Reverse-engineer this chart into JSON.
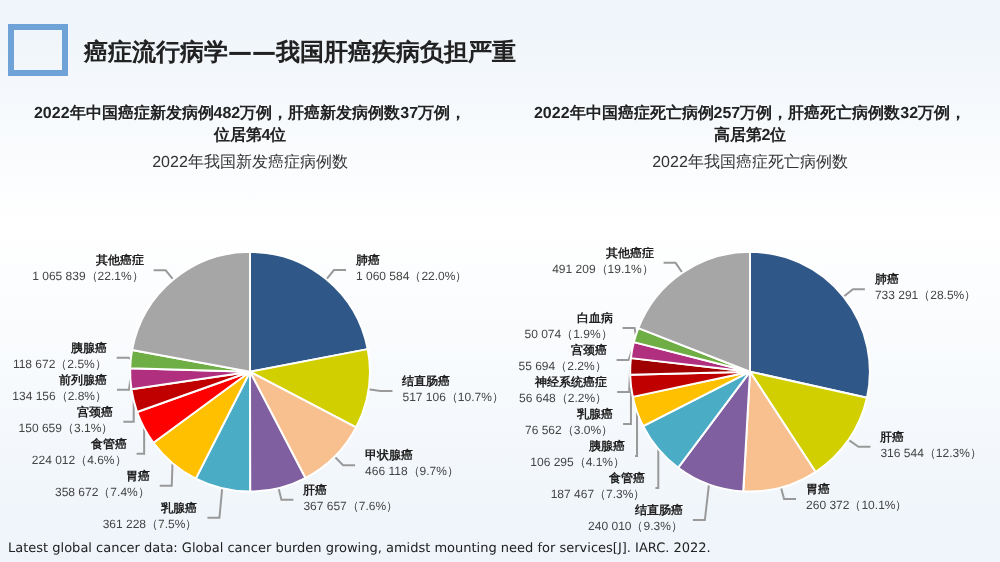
{
  "chart_data": [
    {
      "type": "pie",
      "title": "2022年我国新发癌症病例数",
      "subtitle": "2022年中国癌症新发病例482万例，肝癌新发病例数37万例，位居第4位",
      "annotations": [
        "癌症流行病学——我国肝癌疾病负担严重",
        "Latest global cancer data: Global cancer burden growing, amidst mounting need for services[J]. IARC. 2022."
      ],
      "categories": [
        "肺癌",
        "结直肠癌",
        "甲状腺癌",
        "肝癌",
        "乳腺癌",
        "胃癌",
        "食管癌",
        "宫颈癌",
        "前列腺癌",
        "胰腺癌",
        "其他癌症"
      ],
      "values": [
        1060584,
        517106,
        466118,
        367657,
        361228,
        358672,
        224012,
        150659,
        134156,
        118672,
        1065839
      ],
      "value_labels": [
        "1 060 584（22.0%）",
        "517 106（10.7%）",
        "466 118（9.7%）",
        "367 657（7.6%）",
        "361 228（7.5%）",
        "358 672（7.4%）",
        "224 012（4.6%）",
        "150 659（3.1%）",
        "134 156（2.8%）",
        "118 672（2.5%）",
        "1 065 839（22.1%）"
      ],
      "colors": [
        "#2f5888",
        "#d2cf00",
        "#f8c08e",
        "#7f5fa0",
        "#4bacc6",
        "#ffc000",
        "#ff0000",
        "#c00000",
        "#b0307f",
        "#6fae45",
        "#a6a6a6"
      ]
    },
    {
      "type": "pie",
      "title": "2022年我国癌症死亡病例数",
      "subtitle": "2022年中国癌症死亡病例257万例，肝癌死亡病例数32万例，高居第2位",
      "categories": [
        "肺癌",
        "肝癌",
        "胃癌",
        "结直肠癌",
        "食管癌",
        "胰腺癌",
        "乳腺癌",
        "神经系统癌症",
        "宫颈癌",
        "白血病",
        "其他癌症"
      ],
      "values": [
        733291,
        316544,
        260372,
        240010,
        187467,
        106295,
        76562,
        56648,
        55694,
        50074,
        491209
      ],
      "value_labels": [
        "733 291（28.5%）",
        "316 544（12.3%）",
        "260 372（10.1%）",
        "240 010（9.3%）",
        "187 467（7.3%）",
        "106 295（4.1%）",
        "76 562（3.0%）",
        "56 648（2.2%）",
        "55 694（2.2%）",
        "50 074（1.9%）",
        "491 209（19.1%）"
      ],
      "colors": [
        "#2f5888",
        "#d2cf00",
        "#f8c08e",
        "#7f5fa0",
        "#4bacc6",
        "#ffc000",
        "#c00000",
        "#a00000",
        "#b0307f",
        "#6fae45",
        "#a6a6a6"
      ]
    }
  ]
}
